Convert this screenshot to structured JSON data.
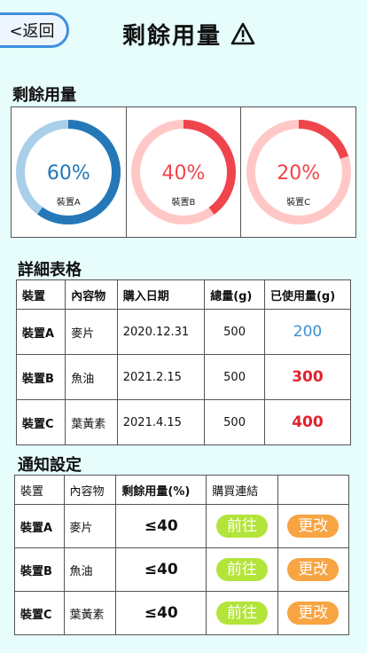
{
  "header": {
    "back_label": "<返回",
    "title": "剩餘用量"
  },
  "gauges": {
    "section_title": "剩餘用量",
    "items": [
      {
        "device": "裝置A",
        "percent_label": "60%",
        "value": 60,
        "color": "#2478b8",
        "track": "#a9d0e8"
      },
      {
        "device": "裝置B",
        "percent_label": "40%",
        "value": 40,
        "color": "#f0444c",
        "track": "#ffc8c6"
      },
      {
        "device": "裝置C",
        "percent_label": "20%",
        "value": 20,
        "color": "#f0444c",
        "track": "#ffc8c6"
      }
    ]
  },
  "detail": {
    "section_title": "詳細表格",
    "headers": [
      "裝置",
      "內容物",
      "購入日期",
      "總量(g)",
      "已使用量(g)"
    ],
    "rows": [
      {
        "device": "裝置A",
        "content": "麥片",
        "date": "2020.12.31",
        "total": "500",
        "used": "200"
      },
      {
        "device": "裝置B",
        "content": "魚油",
        "date": "2021.2.15",
        "total": "500",
        "used": "300"
      },
      {
        "device": "裝置C",
        "content": "葉黃素",
        "date": "2021.4.15",
        "total": "500",
        "used": "400"
      }
    ]
  },
  "notify": {
    "section_title": "通知設定",
    "headers": [
      "裝置",
      "內容物",
      "剩餘用量(%)",
      "購買連結",
      ""
    ],
    "go_label": "前往",
    "edit_label": "更改",
    "rows": [
      {
        "device": "裝置A",
        "content": "麥片",
        "threshold": "≤40"
      },
      {
        "device": "裝置B",
        "content": "魚油",
        "threshold": "≤40"
      },
      {
        "device": "裝置C",
        "content": "葉黃素",
        "threshold": "≤40"
      }
    ]
  }
}
